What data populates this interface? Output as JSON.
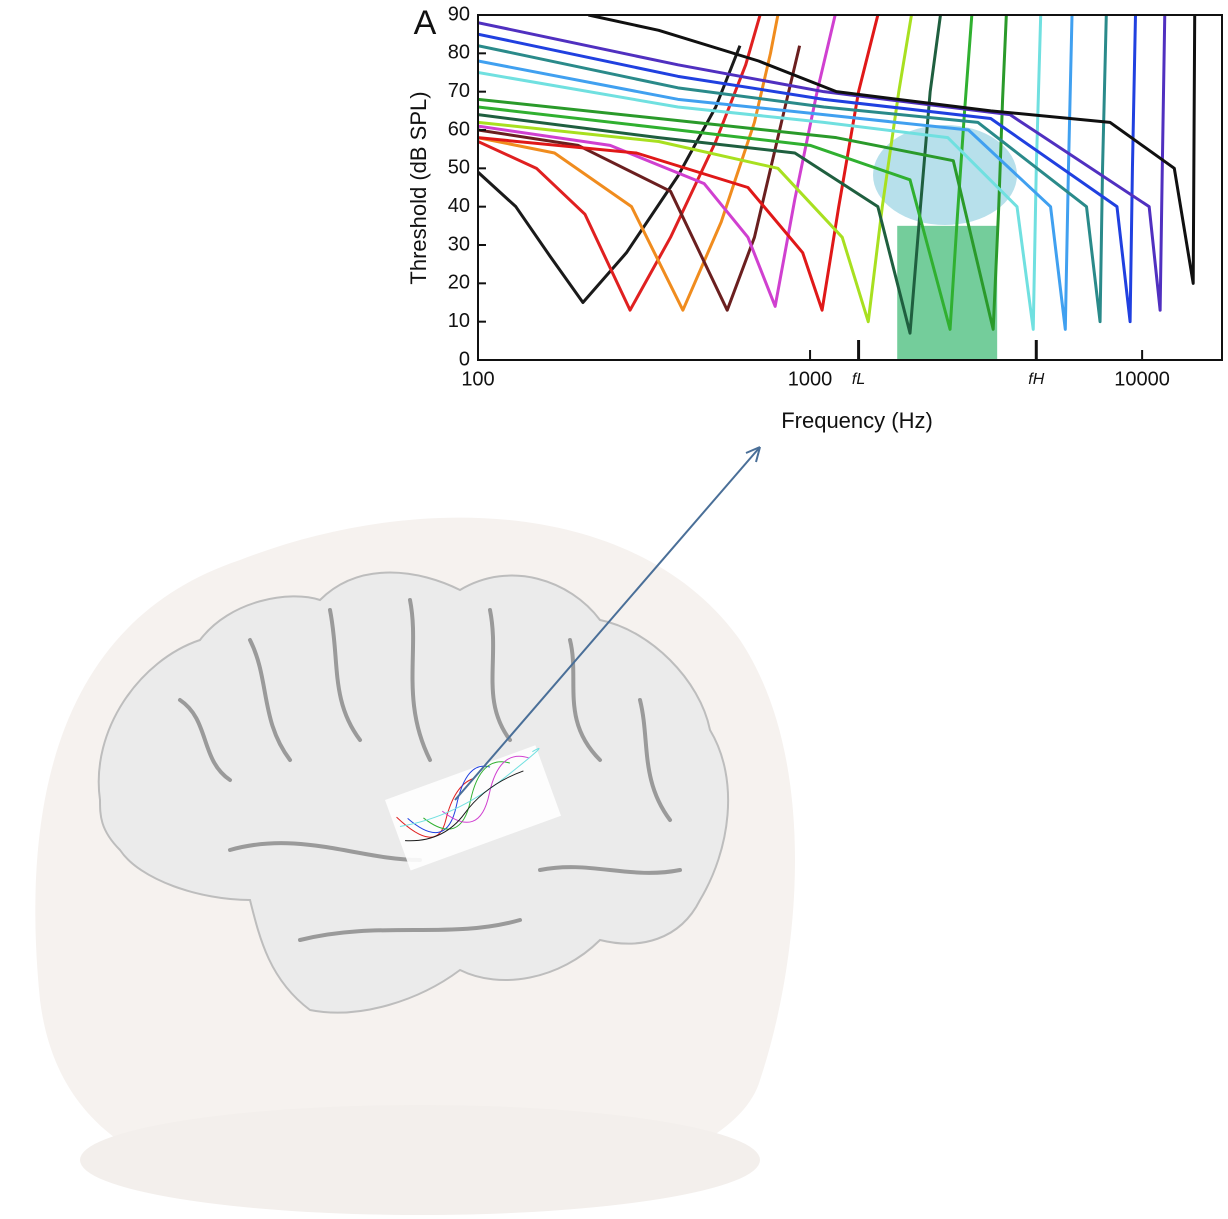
{
  "chart_data": {
    "type": "line",
    "panel_label": "A",
    "x_label": "Frequency (Hz)",
    "y_label": "Threshold (dB SPL)",
    "log_x": true,
    "xlim": [
      100,
      17400
    ],
    "ylim": [
      0,
      90
    ],
    "xticks": [
      100,
      1000,
      {
        "value": 1400,
        "label": "fL"
      },
      {
        "value": 4800,
        "label": "fH"
      },
      10000
    ],
    "yticks": [
      0,
      10,
      20,
      30,
      40,
      50,
      60,
      70,
      80,
      90
    ],
    "highlight": {
      "x": [
        1830,
        3660
      ],
      "y": [
        0,
        35
      ],
      "color": "#5cc48a"
    },
    "series": [
      {
        "color": "#1a1a1a",
        "x": [
          100,
          130,
          165,
          207,
          280,
          400,
          520,
          615
        ],
        "values": [
          49,
          40,
          27,
          15,
          28,
          48,
          66,
          82
        ]
      },
      {
        "color": "#e02020",
        "x": [
          100,
          150,
          210,
          287,
          380,
          520,
          640,
          707
        ],
        "values": [
          57,
          50,
          38,
          13,
          32,
          57,
          77,
          90
        ]
      },
      {
        "color": "#f08c1e",
        "x": [
          100,
          170,
          290,
          414,
          540,
          680,
          760,
          800
        ],
        "values": [
          58,
          54,
          40,
          13,
          36,
          62,
          80,
          90
        ]
      },
      {
        "color": "#6b1f1f",
        "x": [
          100,
          200,
          380,
          563,
          680,
          820,
          930
        ],
        "values": [
          60,
          56,
          44,
          13,
          32,
          62,
          82
        ]
      },
      {
        "color": "#d040d0",
        "x": [
          100,
          250,
          480,
          650,
          785,
          900,
          1050,
          1190
        ],
        "values": [
          61,
          56,
          46,
          32,
          14,
          42,
          70,
          90
        ]
      },
      {
        "color": "#e01818",
        "x": [
          100,
          300,
          650,
          950,
          1087,
          1220,
          1400,
          1600
        ],
        "values": [
          58,
          54,
          45,
          28,
          13,
          40,
          70,
          90
        ]
      },
      {
        "color": "#a8e020",
        "x": [
          100,
          350,
          800,
          1250,
          1497,
          1650,
          1850,
          2020
        ],
        "values": [
          62,
          57,
          50,
          32,
          10,
          40,
          70,
          90
        ]
      },
      {
        "color": "#1f5f3f",
        "x": [
          100,
          350,
          900,
          1600,
          2000,
          2150,
          2300,
          2470
        ],
        "values": [
          64,
          58,
          54,
          40,
          7,
          40,
          70,
          90
        ]
      },
      {
        "color": "#30b030",
        "x": [
          100,
          400,
          1000,
          2000,
          2640,
          2780,
          2920,
          3070
        ],
        "values": [
          66,
          60,
          56,
          47,
          8,
          38,
          65,
          90
        ]
      },
      {
        "color": "#2a9a2a",
        "x": [
          100,
          450,
          1200,
          2700,
          3560,
          3700,
          3800,
          3900
        ],
        "values": [
          68,
          62,
          58,
          52,
          8,
          40,
          68,
          90
        ]
      },
      {
        "color": "#70e0e0",
        "x": [
          100,
          400,
          1100,
          2600,
          4200,
          4700,
          4800,
          4950
        ],
        "values": [
          75,
          66,
          62,
          58,
          40,
          8,
          50,
          90
        ]
      },
      {
        "color": "#40a0f0",
        "x": [
          100,
          400,
          1100,
          3000,
          5300,
          5870,
          6000,
          6150
        ],
        "values": [
          78,
          68,
          64,
          60,
          40,
          8,
          50,
          90
        ]
      },
      {
        "color": "#2a8a8a",
        "x": [
          100,
          400,
          1100,
          3200,
          6800,
          7470,
          7600,
          7800
        ],
        "values": [
          82,
          71,
          66,
          62,
          40,
          10,
          50,
          90
        ]
      },
      {
        "color": "#2040e0",
        "x": [
          100,
          400,
          1100,
          3500,
          8400,
          9200,
          9350,
          9550
        ],
        "values": [
          85,
          74,
          68,
          63,
          40,
          10,
          50,
          90
        ]
      },
      {
        "color": "#5030c0",
        "x": [
          100,
          400,
          1100,
          4000,
          10500,
          11330,
          11500,
          11700
        ],
        "values": [
          88,
          77,
          70,
          64,
          40,
          13,
          50,
          90
        ]
      },
      {
        "color": "#101010",
        "x": [
          215,
          350,
          700,
          1200,
          3500,
          8000,
          12500,
          14250,
          14400
        ],
        "values": [
          90,
          86,
          78,
          70,
          65,
          62,
          50,
          20,
          90
        ]
      }
    ]
  }
}
